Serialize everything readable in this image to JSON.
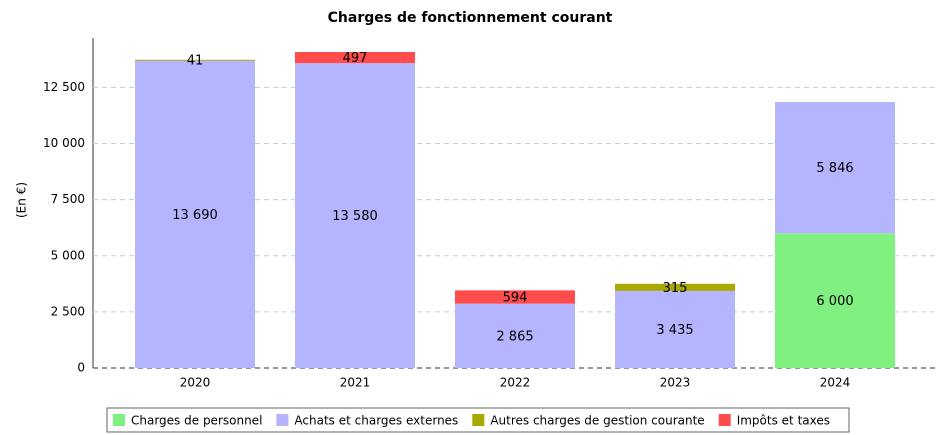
{
  "chart_data": {
    "type": "stacked_bar",
    "title": "Charges de fonctionnement courant",
    "ylabel": "(En €)",
    "categories": [
      "2020",
      "2021",
      "2022",
      "2023",
      "2024"
    ],
    "series": [
      {
        "name": "Charges de personnel",
        "color": "#80f080",
        "values": [
          null,
          null,
          null,
          null,
          6000
        ],
        "value_labels": [
          null,
          null,
          null,
          null,
          "6 000"
        ]
      },
      {
        "name": "Achats et charges externes",
        "color": "#b4b4ff",
        "values": [
          13690,
          13580,
          2865,
          3435,
          5846
        ],
        "value_labels": [
          "13 690",
          "13 580",
          "2 865",
          "3 435",
          "5 846"
        ]
      },
      {
        "name": "Autres charges de gestion courante",
        "color": "#a8a800",
        "values": [
          41,
          null,
          null,
          315,
          null
        ],
        "value_labels": [
          "41",
          null,
          null,
          "315",
          null
        ]
      },
      {
        "name": "Impôts et taxes",
        "color": "#ff4c4c",
        "values": [
          null,
          497,
          594,
          null,
          null
        ],
        "value_labels": [
          null,
          "497",
          "594",
          null,
          null
        ]
      }
    ],
    "ylim": [
      0,
      14700
    ],
    "yticks": [
      0,
      {
        "value": 2500,
        "label": "2 500"
      },
      {
        "value": 5000,
        "label": "5 000"
      },
      {
        "value": 7500,
        "label": "7 500"
      },
      {
        "value": 10000,
        "label": "10 000"
      },
      {
        "value": 12500,
        "label": "12 500"
      }
    ],
    "grid": true,
    "legend": "bottom"
  }
}
